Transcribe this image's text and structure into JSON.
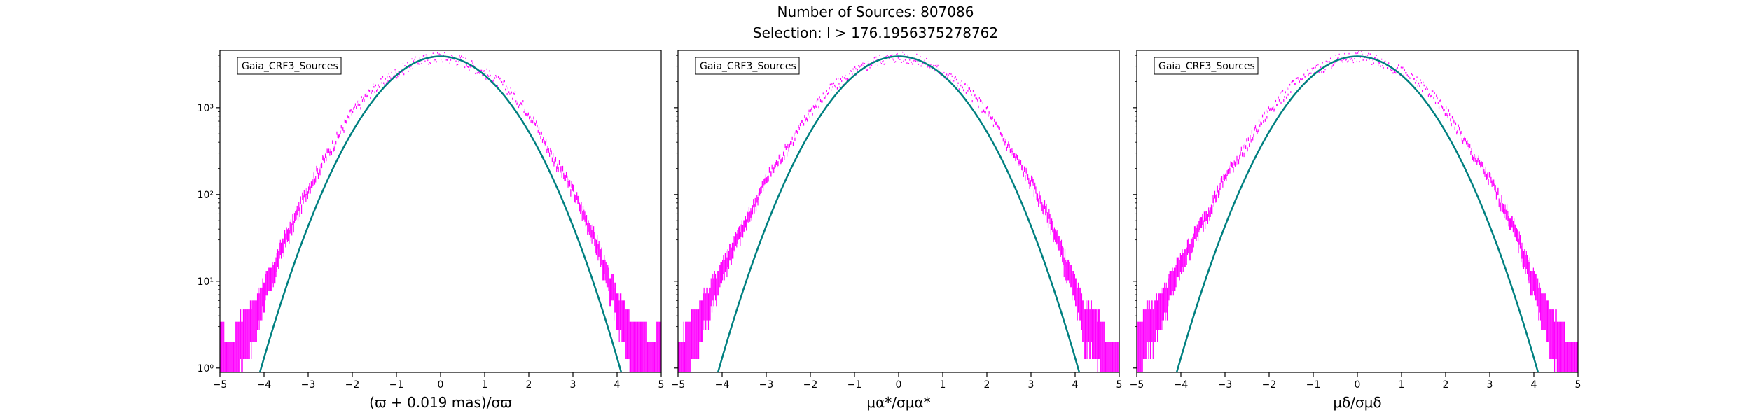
{
  "figure": {
    "title_line1": "Number of Sources: 807086",
    "title_line2": "Selection: l > 176.1956375278762",
    "colors": {
      "histogram": "#ff00ff",
      "fit_curve": "#008080",
      "fit_step": "#1f77b4"
    }
  },
  "chart_data": [
    {
      "type": "histogram",
      "legend": "Gaia_CRF3_Sources",
      "legend_position": "top-left",
      "xlabel": "(ϖ + 0.019 mas)/σϖ",
      "xlim": [
        -5,
        5
      ],
      "ylim_log10": [
        -0.05,
        3.66
      ],
      "yscale": "log",
      "xticks": [
        -5,
        -4,
        -3,
        -2,
        -1,
        0,
        1,
        2,
        3,
        4,
        5
      ],
      "ytick_labels": [
        "10⁰",
        "10¹",
        "10²",
        "10³"
      ],
      "peak_count": 3900,
      "histogram_points": [
        [
          -4.95,
          2
        ],
        [
          -4.8,
          1
        ],
        [
          -4.6,
          2
        ],
        [
          -4.4,
          3
        ],
        [
          -4.2,
          4
        ],
        [
          -4.0,
          8
        ],
        [
          -3.8,
          12
        ],
        [
          -3.6,
          25
        ],
        [
          -3.4,
          40
        ],
        [
          -3.0,
          120
        ],
        [
          -2.5,
          330
        ],
        [
          -2.0,
          900
        ],
        [
          -1.5,
          1700
        ],
        [
          -1.0,
          2550
        ],
        [
          -0.5,
          3500
        ],
        [
          0.0,
          3900
        ],
        [
          0.5,
          3500
        ],
        [
          1.0,
          2550
        ],
        [
          1.5,
          1700
        ],
        [
          2.0,
          900
        ],
        [
          2.5,
          300
        ],
        [
          3.0,
          110
        ],
        [
          3.4,
          40
        ],
        [
          3.6,
          22
        ],
        [
          3.8,
          10
        ],
        [
          4.0,
          6
        ],
        [
          4.2,
          3
        ],
        [
          4.4,
          2
        ],
        [
          4.6,
          2
        ],
        [
          4.8,
          1
        ],
        [
          4.95,
          2
        ]
      ]
    },
    {
      "type": "histogram",
      "legend": "Gaia_CRF3_Sources",
      "legend_position": "top-left",
      "xlabel": "μα*/σμα*",
      "xlim": [
        -5,
        5
      ],
      "ylim_log10": [
        -0.05,
        3.66
      ],
      "yscale": "log",
      "xticks": [
        -5,
        -4,
        -3,
        -2,
        -1,
        0,
        1,
        2,
        3,
        4,
        5
      ],
      "peak_count": 3900,
      "histogram_points": [
        [
          -4.95,
          1
        ],
        [
          -4.8,
          2
        ],
        [
          -4.6,
          3
        ],
        [
          -4.4,
          5
        ],
        [
          -4.2,
          8
        ],
        [
          -4.0,
          14
        ],
        [
          -3.8,
          22
        ],
        [
          -3.6,
          35
        ],
        [
          -3.4,
          55
        ],
        [
          -3.0,
          150
        ],
        [
          -2.5,
          360
        ],
        [
          -2.0,
          920
        ],
        [
          -1.5,
          1720
        ],
        [
          -1.0,
          2580
        ],
        [
          -0.5,
          3520
        ],
        [
          0.0,
          3900
        ],
        [
          0.5,
          3520
        ],
        [
          1.0,
          2580
        ],
        [
          1.5,
          1720
        ],
        [
          2.0,
          920
        ],
        [
          2.5,
          350
        ],
        [
          3.0,
          140
        ],
        [
          3.4,
          55
        ],
        [
          3.6,
          30
        ],
        [
          3.8,
          15
        ],
        [
          4.0,
          8
        ],
        [
          4.2,
          4
        ],
        [
          4.4,
          3
        ],
        [
          4.6,
          2
        ],
        [
          4.8,
          1
        ],
        [
          4.95,
          1
        ]
      ]
    },
    {
      "type": "histogram",
      "legend": "Gaia_CRF3_Sources",
      "legend_position": "top-left",
      "xlabel": "μδ/σμδ",
      "xlim": [
        -5,
        5
      ],
      "ylim_log10": [
        -0.05,
        3.66
      ],
      "yscale": "log",
      "xticks": [
        -5,
        -4,
        -3,
        -2,
        -1,
        0,
        1,
        2,
        3,
        4,
        5
      ],
      "peak_count": 3900,
      "histogram_points": [
        [
          -4.95,
          2
        ],
        [
          -4.8,
          3
        ],
        [
          -4.6,
          4
        ],
        [
          -4.4,
          6
        ],
        [
          -4.2,
          10
        ],
        [
          -4.0,
          16
        ],
        [
          -3.8,
          25
        ],
        [
          -3.6,
          40
        ],
        [
          -3.4,
          60
        ],
        [
          -3.0,
          160
        ],
        [
          -2.5,
          380
        ],
        [
          -2.0,
          940
        ],
        [
          -1.5,
          1740
        ],
        [
          -1.0,
          2600
        ],
        [
          -0.5,
          3530
        ],
        [
          0.0,
          3900
        ],
        [
          0.5,
          3530
        ],
        [
          1.0,
          2600
        ],
        [
          1.5,
          1740
        ],
        [
          2.0,
          940
        ],
        [
          2.5,
          360
        ],
        [
          3.0,
          150
        ],
        [
          3.4,
          60
        ],
        [
          3.6,
          35
        ],
        [
          3.8,
          18
        ],
        [
          4.0,
          10
        ],
        [
          4.2,
          5
        ],
        [
          4.4,
          3
        ],
        [
          4.6,
          2
        ],
        [
          4.8,
          1
        ],
        [
          4.95,
          1
        ]
      ]
    }
  ]
}
